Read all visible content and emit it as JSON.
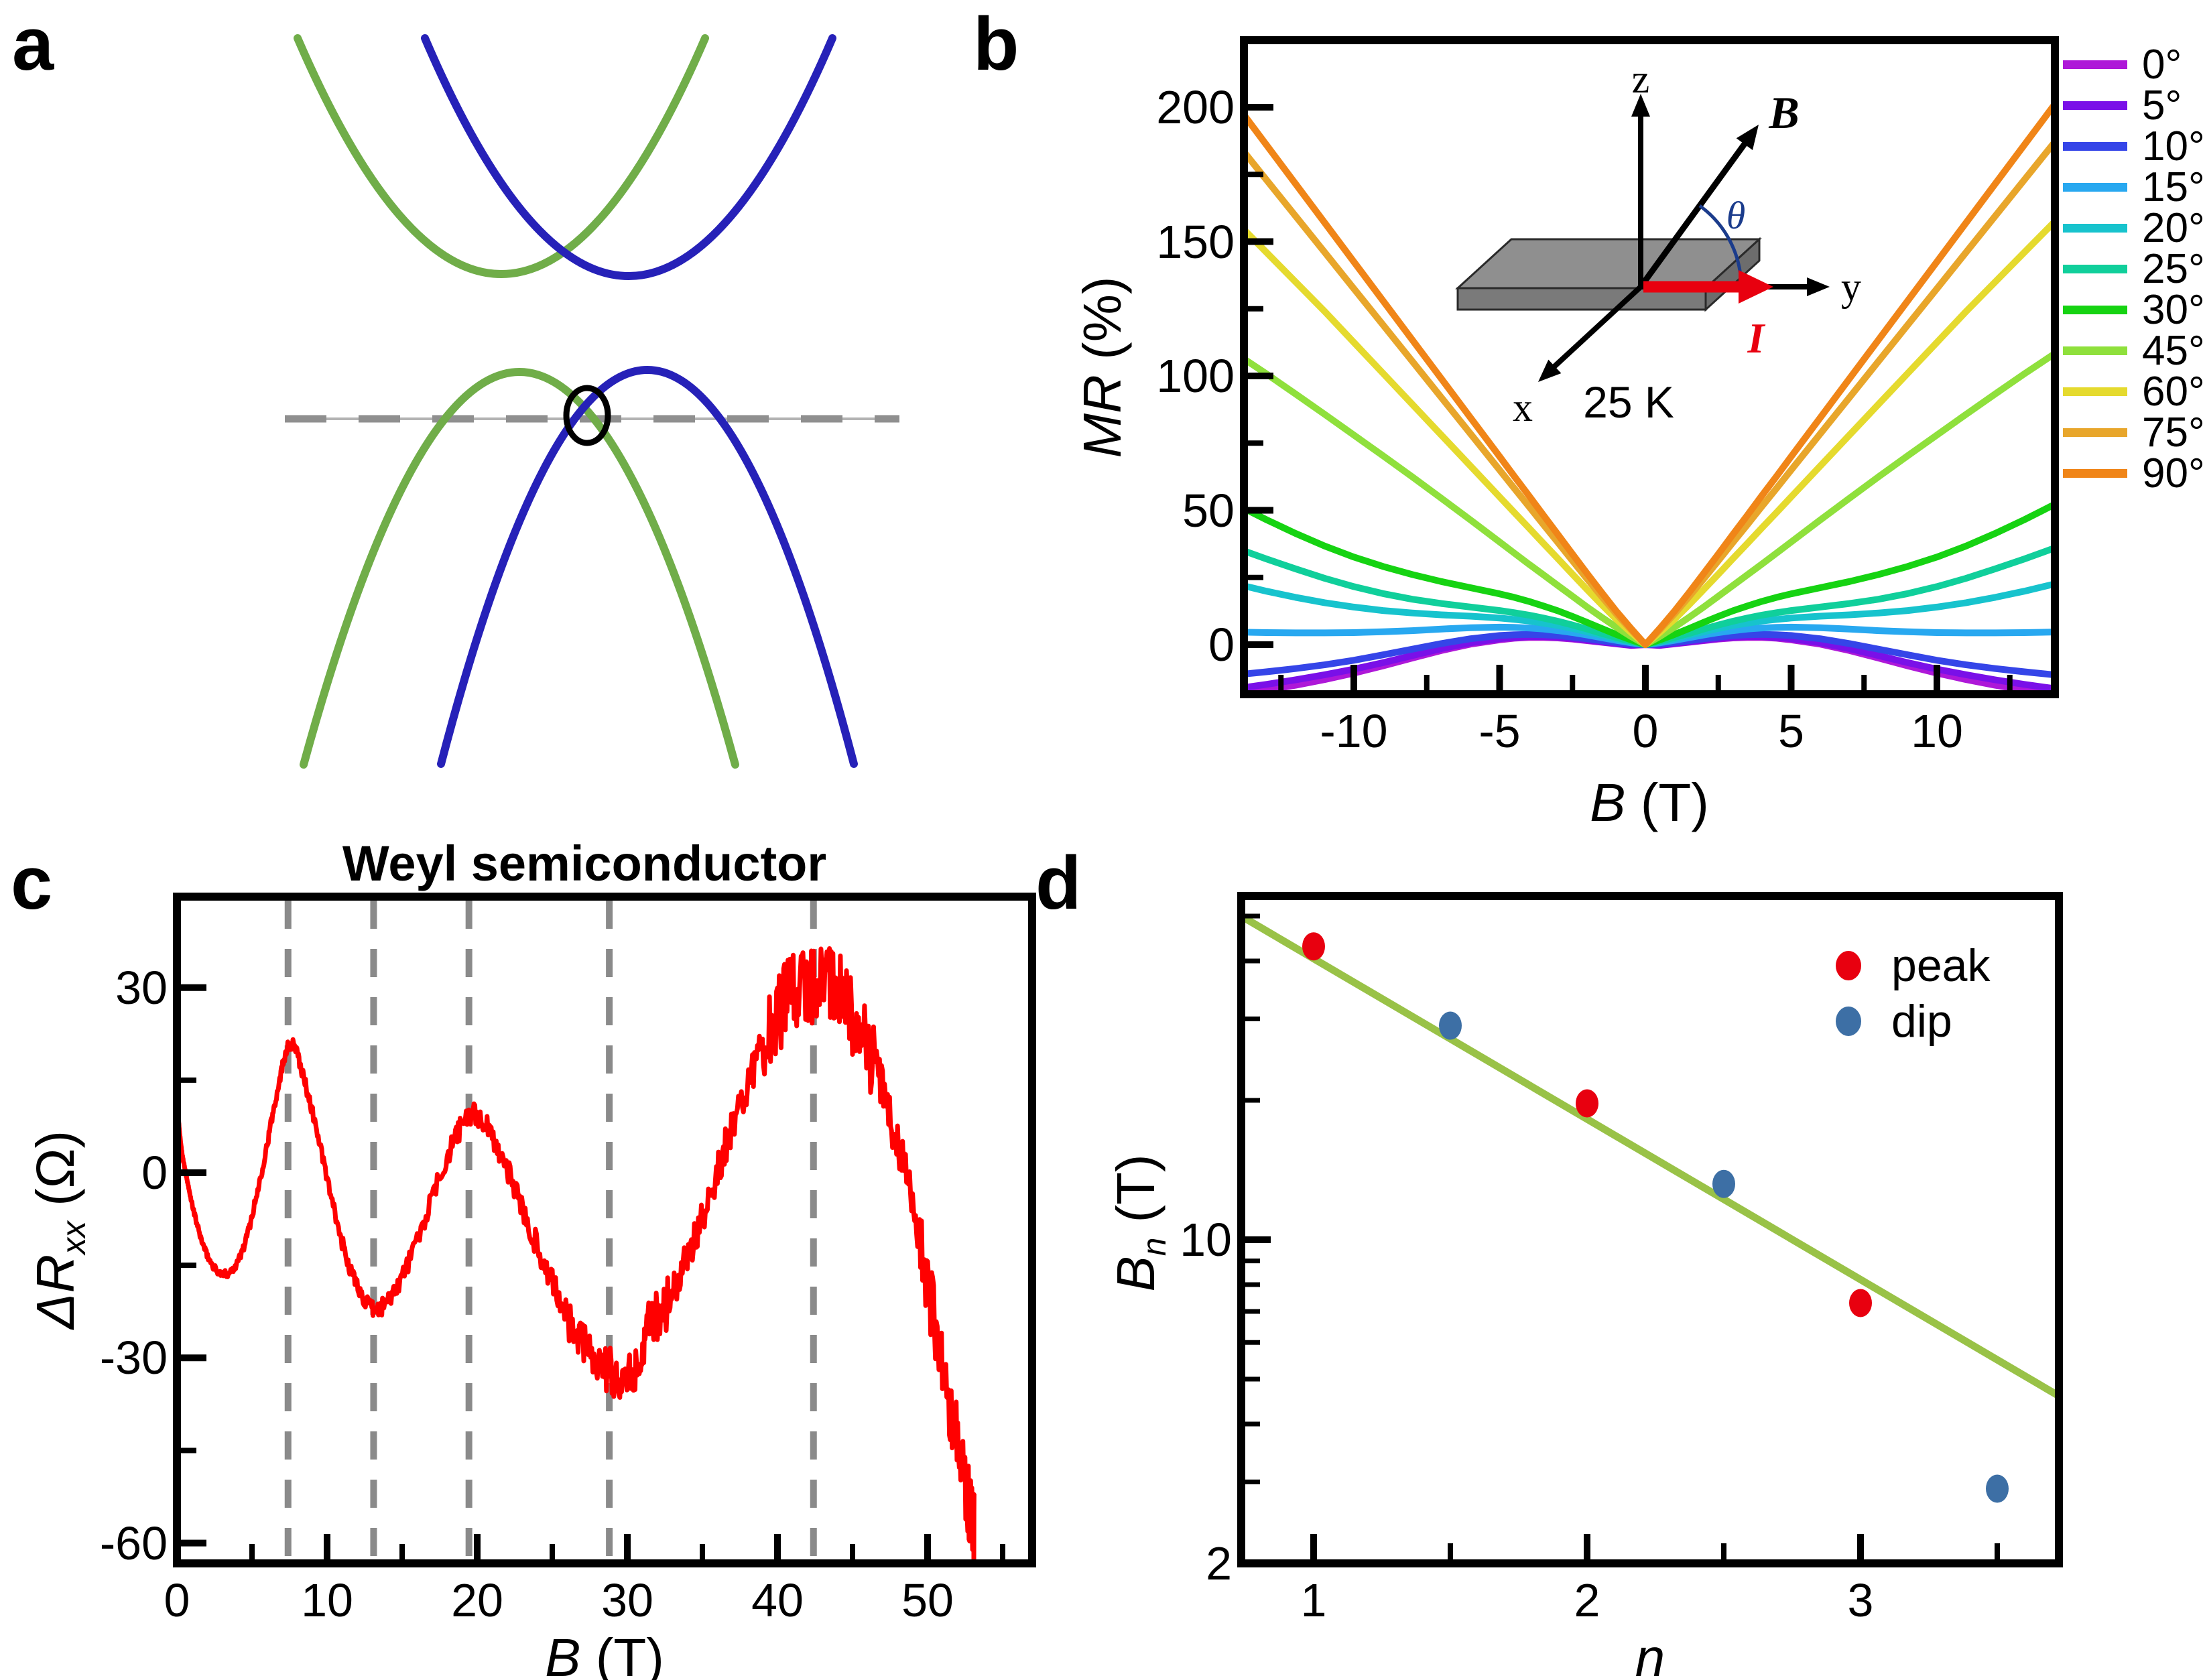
{
  "panel_a": {
    "label": "a",
    "caption": "Weyl semiconductor",
    "colors": {
      "band_green": "#70ad49",
      "band_blue": "#2621b8",
      "fermi_dashed": "#8f8f8f",
      "fermi_thin": "#b3b3b3",
      "weyl_circle": "#000000"
    },
    "description": "Schematic bands: green and blue parabolas shifted in momentum; gray dashed Fermi level passes through the band crossing circled in black."
  },
  "chart_data": [
    {
      "id": "b",
      "panel_label": "b",
      "type": "line",
      "title": "",
      "xlabel": {
        "main": "B",
        "unit": " (T)"
      },
      "ylabel": {
        "main": "MR",
        "unit": " (%)"
      },
      "xlim": [
        -13.8,
        14.05
      ],
      "ylim": [
        -18.5,
        225
      ],
      "xticks": [
        -10,
        -5,
        0,
        5,
        10
      ],
      "xticks_minor": [
        -12.5,
        -7.5,
        -2.5,
        2.5,
        7.5,
        12.5
      ],
      "yticks": [
        0,
        50,
        100,
        150,
        200
      ],
      "yticks_minor": [
        25,
        75,
        125,
        175
      ],
      "grid": false,
      "legend_position": "right-outside",
      "annotation": "25 K",
      "inset": {
        "axis_z": "z",
        "axis_y": "y",
        "axis_x": "x",
        "field": "B",
        "current": "I",
        "angle": "θ"
      },
      "mirror_x": true,
      "x": [
        0,
        0.5,
        1,
        1.5,
        2,
        2.5,
        3,
        3.5,
        4,
        4.5,
        5,
        6,
        7,
        8,
        9,
        10,
        11,
        12,
        13,
        14,
        14.2
      ],
      "series": [
        {
          "name": "0°",
          "color": "#ae18d8",
          "y": [
            0,
            -0.3,
            0.3,
            0.9,
            1.5,
            2.1,
            2.5,
            2.7,
            2.7,
            2.4,
            1.8,
            0.2,
            -2.2,
            -5.0,
            -7.9,
            -10.6,
            -13.0,
            -15.1,
            -16.9,
            -18.5,
            -18.8
          ]
        },
        {
          "name": "5°",
          "color": "#7a10e8",
          "y": [
            0,
            -0.2,
            0.4,
            1.0,
            1.7,
            2.3,
            2.8,
            3.0,
            3.0,
            2.7,
            2.2,
            0.7,
            -1.5,
            -4.1,
            -6.7,
            -9.1,
            -11.2,
            -13.1,
            -14.8,
            -16.3,
            -16.6
          ]
        },
        {
          "name": "10°",
          "color": "#3545e8",
          "y": [
            0,
            0.2,
            0.8,
            1.5,
            2.2,
            2.8,
            3.4,
            3.7,
            3.8,
            3.7,
            3.4,
            2.2,
            0.4,
            -1.7,
            -3.8,
            -5.8,
            -7.5,
            -8.9,
            -10.1,
            -11.2,
            -11.4
          ]
        },
        {
          "name": "15°",
          "color": "#28a8f0",
          "y": [
            0,
            0.7,
            1.6,
            2.6,
            3.6,
            4.5,
            5.2,
            5.8,
            6.2,
            6.4,
            6.5,
            6.3,
            5.8,
            5.2,
            4.8,
            4.5,
            4.4,
            4.4,
            4.5,
            4.7,
            4.7
          ]
        },
        {
          "name": "20°",
          "color": "#17c3cd",
          "y": [
            0,
            1.0,
            2.2,
            3.5,
            4.8,
            6.0,
            7.1,
            8.0,
            8.8,
            9.4,
            9.9,
            10.6,
            11.1,
            11.8,
            12.7,
            14.0,
            15.6,
            17.6,
            19.9,
            22.5,
            23.0
          ]
        },
        {
          "name": "25°",
          "color": "#10cf9b",
          "y": [
            0,
            1.3,
            2.7,
            4.2,
            5.8,
            7.3,
            8.7,
            9.9,
            11.0,
            11.9,
            12.7,
            14.0,
            15.3,
            16.9,
            19.0,
            21.6,
            24.7,
            28.2,
            31.9,
            35.8,
            36.6
          ]
        },
        {
          "name": "30°",
          "color": "#16d312",
          "y": [
            0,
            1.8,
            3.8,
            6.0,
            8.3,
            10.5,
            12.6,
            14.4,
            16.1,
            17.6,
            18.9,
            21.2,
            23.5,
            26.1,
            29.1,
            32.6,
            36.7,
            41.4,
            46.5,
            52.0,
            53.2
          ]
        },
        {
          "name": "45°",
          "color": "#8fe03c",
          "y": [
            0,
            3.1,
            6.5,
            10.2,
            14.0,
            18.0,
            22.0,
            26.0,
            30.0,
            34.1,
            38.2,
            46.4,
            54.5,
            62.5,
            70.3,
            78.0,
            85.7,
            93.3,
            100.8,
            108.0,
            109.5
          ]
        },
        {
          "name": "60°",
          "color": "#e5da2e",
          "y": [
            0,
            4.6,
            9.5,
            14.9,
            20.5,
            26.2,
            32.0,
            37.7,
            43.5,
            49.2,
            55.0,
            66.5,
            78.0,
            89.5,
            101.0,
            112.5,
            124.0,
            135.0,
            146.0,
            157.0,
            159.2
          ]
        },
        {
          "name": "75°",
          "color": "#e8a62b",
          "y": [
            0,
            5.6,
            11.5,
            17.9,
            24.5,
            31.2,
            38.0,
            44.7,
            51.5,
            58.2,
            65.0,
            78.5,
            92.0,
            105.5,
            119.0,
            132.5,
            146.0,
            159.5,
            173.0,
            186.5,
            189.2
          ]
        },
        {
          "name": "90°",
          "color": "#f08518",
          "y": [
            0,
            6.1,
            12.5,
            19.4,
            26.5,
            33.7,
            41.0,
            48.2,
            55.5,
            62.7,
            70.0,
            84.5,
            99.0,
            113.5,
            128.0,
            142.5,
            157.0,
            171.5,
            186.0,
            200.5,
            203.4
          ]
        }
      ]
    },
    {
      "id": "c",
      "panel_label": "c",
      "type": "line",
      "title": "",
      "xlabel": {
        "main": "B",
        "unit": " (T)"
      },
      "ylabel": {
        "prefix": "ΔR",
        "sub": "xx",
        "unit": " (Ω)"
      },
      "xlim": [
        0,
        57
      ],
      "ylim": [
        -63.3,
        44.8
      ],
      "xticks": [
        0,
        10,
        20,
        30,
        40,
        50
      ],
      "xticks_minor": [
        5,
        15,
        25,
        35,
        45,
        55
      ],
      "yticks": [
        -60,
        -30,
        0,
        30
      ],
      "yticks_minor": [
        -45,
        -15,
        15
      ],
      "grid": false,
      "dashed_guides_x": [
        7.4,
        13.1,
        19.45,
        28.8,
        42.4
      ],
      "curve_color": "#ff0000",
      "guide_color": "#8a8a8a",
      "noise": {
        "enabled": true,
        "base_amplitude": 0.35,
        "slope_per_tesla": 0.075
      },
      "points": [
        [
          0.03,
          13
        ],
        [
          0.1,
          9
        ],
        [
          0.2,
          6
        ],
        [
          0.35,
          3
        ],
        [
          0.5,
          1
        ],
        [
          0.7,
          -1.5
        ],
        [
          1,
          -5
        ],
        [
          1.5,
          -9.8
        ],
        [
          2,
          -13.3
        ],
        [
          2.5,
          -15.4
        ],
        [
          3,
          -16.4
        ],
        [
          3.5,
          -16.1
        ],
        [
          4,
          -14.6
        ],
        [
          4.5,
          -11.6
        ],
        [
          5,
          -7
        ],
        [
          5.5,
          -1.5
        ],
        [
          6,
          4.5
        ],
        [
          6.5,
          11
        ],
        [
          7,
          17
        ],
        [
          7.35,
          20.2
        ],
        [
          7.8,
          20.6
        ],
        [
          8.2,
          17.5
        ],
        [
          8.7,
          13
        ],
        [
          9.3,
          7
        ],
        [
          10,
          -1
        ],
        [
          10.7,
          -8.5
        ],
        [
          11.4,
          -14.5
        ],
        [
          12,
          -18.3
        ],
        [
          12.6,
          -21
        ],
        [
          13.1,
          -22.2
        ],
        [
          13.6,
          -21.8
        ],
        [
          14.2,
          -20
        ],
        [
          15,
          -16.8
        ],
        [
          16,
          -11
        ],
        [
          17,
          -4.2
        ],
        [
          18,
          2.5
        ],
        [
          18.8,
          6.8
        ],
        [
          19.5,
          9.2
        ],
        [
          20.2,
          8.8
        ],
        [
          21,
          5.8
        ],
        [
          21.8,
          1.8
        ],
        [
          22.6,
          -3
        ],
        [
          23.5,
          -8.8
        ],
        [
          24.4,
          -14.4
        ],
        [
          25.3,
          -19.6
        ],
        [
          26.2,
          -24.2
        ],
        [
          27.1,
          -27.8
        ],
        [
          28,
          -30.3
        ],
        [
          28.8,
          -32
        ],
        [
          29.5,
          -33
        ],
        [
          30.2,
          -33.2
        ],
        [
          30.8,
          -29.5
        ],
        [
          31.3,
          -25.8
        ],
        [
          31.8,
          -23.4
        ],
        [
          32.3,
          -22.6
        ],
        [
          32.9,
          -20
        ],
        [
          33.6,
          -16
        ],
        [
          34.4,
          -11
        ],
        [
          35.2,
          -5.4
        ],
        [
          36,
          0.4
        ],
        [
          36.8,
          6.2
        ],
        [
          37.6,
          11.8
        ],
        [
          38.4,
          17
        ],
        [
          39.2,
          21.6
        ],
        [
          40,
          25.4
        ],
        [
          40.7,
          28.2
        ],
        [
          41.4,
          30
        ],
        [
          42.1,
          30.6
        ],
        [
          42.7,
          31.4
        ],
        [
          43.3,
          30.8
        ],
        [
          44,
          29.4
        ],
        [
          44.8,
          26.6
        ],
        [
          45.6,
          22.6
        ],
        [
          46.4,
          17.6
        ],
        [
          47.2,
          11.6
        ],
        [
          48,
          4.6
        ],
        [
          48.8,
          -3.6
        ],
        [
          49.6,
          -13
        ],
        [
          50.4,
          -23.2
        ],
        [
          51.1,
          -32.6
        ],
        [
          51.8,
          -41.8
        ],
        [
          52.4,
          -49.6
        ],
        [
          52.9,
          -55.5
        ],
        [
          53.1,
          -57.5
        ]
      ]
    },
    {
      "id": "d",
      "panel_label": "d",
      "type": "scatter",
      "title": "",
      "xlabel": {
        "main": "n",
        "unit": ""
      },
      "ylabel": {
        "prefix": "B",
        "sub": "n",
        "unit": " (T)"
      },
      "xlim": [
        0.735,
        3.725
      ],
      "ylim_log": [
        2,
        55
      ],
      "xticks": [
        1,
        2,
        3
      ],
      "xticks_minor": [
        1.5,
        2.5,
        3.5
      ],
      "yticks": [
        2,
        10
      ],
      "yticks_minor": [
        3,
        4,
        5,
        6,
        7,
        8,
        9,
        20,
        30,
        40,
        50
      ],
      "grid": false,
      "fit_line": {
        "color": "#99c247",
        "points": [
          [
            0.735,
            50
          ],
          [
            3.725,
            4.6
          ]
        ]
      },
      "series": [
        {
          "name": "peak",
          "color": "#e8000f",
          "points": [
            [
              1,
              43
            ],
            [
              2,
              19.7
            ],
            [
              3,
              7.3
            ]
          ]
        },
        {
          "name": "dip",
          "color": "#3d6fa5",
          "points": [
            [
              1.5,
              29
            ],
            [
              2.5,
              13.2
            ],
            [
              3.5,
              2.9
            ]
          ]
        }
      ],
      "legend_position": "top-right-inside"
    }
  ]
}
